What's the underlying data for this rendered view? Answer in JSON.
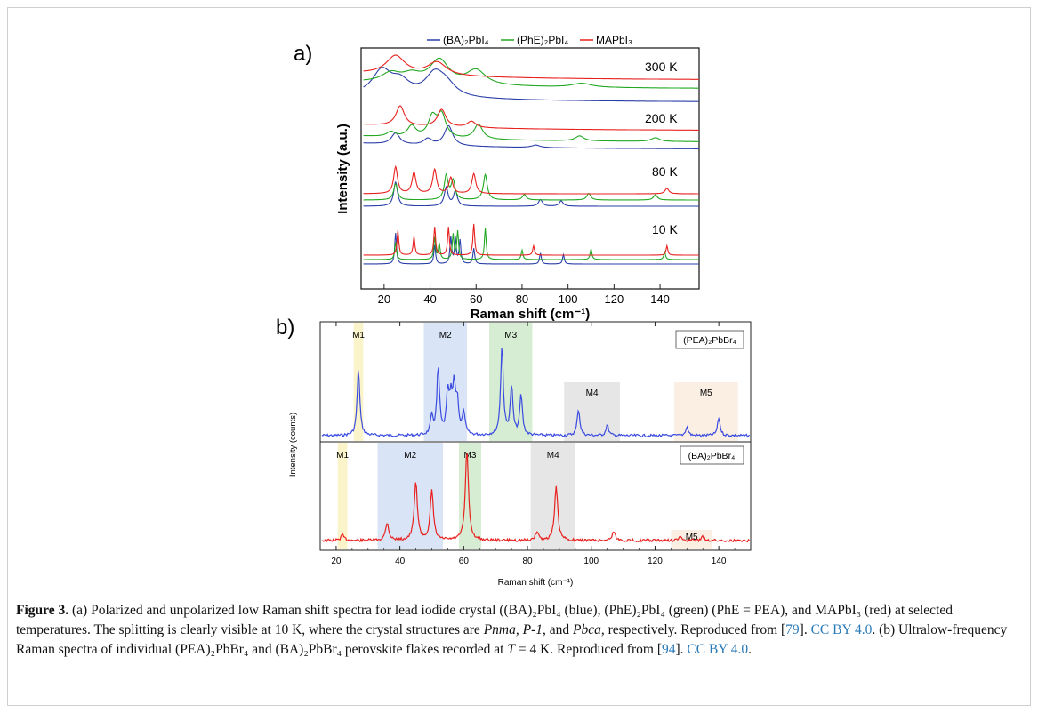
{
  "chart_data": [
    {
      "panel_label": "a)",
      "type": "line",
      "xlabel": "Raman shift (cm⁻¹)",
      "ylabel": "Intensity (a.u.)",
      "xlim": [
        10,
        157
      ],
      "x_ticks": [
        20,
        40,
        60,
        80,
        100,
        120,
        140
      ],
      "legend_placement": "top",
      "series": [
        {
          "name": "(BA)₂PbI₄",
          "color": "#2b3fa8"
        },
        {
          "name": "(PhE)₂PbI₄",
          "color": "#22a822"
        },
        {
          "name": "MAPbI₃",
          "color": "#e8211f"
        }
      ],
      "temperature_labels": [
        "300 K",
        "200 K",
        "80 K",
        "10 K"
      ],
      "peaks": {
        "300K": {
          "BA": [
            [
              19,
              0.9
            ],
            [
              27,
              0.5
            ],
            [
              42,
              0.8
            ],
            [
              47,
              0.4
            ]
          ],
          "PhE": [
            [
              23,
              0.35
            ],
            [
              32,
              0.3
            ],
            [
              44,
              0.9
            ],
            [
              60,
              0.55
            ],
            [
              106,
              0.15
            ]
          ],
          "MA": [
            [
              25,
              0.7
            ],
            [
              43,
              0.5
            ]
          ]
        },
        "200K": {
          "BA": [
            [
              25,
              0.45
            ],
            [
              39,
              0.25
            ],
            [
              48,
              0.8
            ],
            [
              86,
              0.1
            ]
          ],
          "PhE": [
            [
              23,
              0.2
            ],
            [
              32,
              0.45
            ],
            [
              41,
              0.8
            ],
            [
              45,
              0.9
            ],
            [
              61,
              0.6
            ],
            [
              105,
              0.2
            ],
            [
              138,
              0.15
            ]
          ],
          "MA": [
            [
              27,
              0.8
            ],
            [
              45,
              0.7
            ],
            [
              58,
              0.25
            ]
          ]
        },
        "80K": {
          "BA": [
            [
              25,
              0.9
            ],
            [
              47,
              0.7
            ],
            [
              51,
              0.55
            ],
            [
              88,
              0.25
            ],
            [
              97,
              0.2
            ]
          ],
          "PhE": [
            [
              25,
              0.6
            ],
            [
              47,
              0.9
            ],
            [
              50,
              0.7
            ],
            [
              64,
              0.95
            ],
            [
              81,
              0.2
            ],
            [
              109,
              0.25
            ],
            [
              138,
              0.2
            ]
          ],
          "MA": [
            [
              25,
              1.0
            ],
            [
              33,
              0.8
            ],
            [
              42,
              0.9
            ],
            [
              49,
              0.6
            ],
            [
              59,
              0.75
            ],
            [
              143,
              0.2
            ]
          ]
        },
        "10K": {
          "BA": [
            [
              25,
              1.0
            ],
            [
              42,
              0.6
            ],
            [
              49,
              0.85
            ],
            [
              51,
              0.8
            ],
            [
              53,
              0.75
            ],
            [
              59,
              0.5
            ],
            [
              88,
              0.35
            ],
            [
              98,
              0.3
            ]
          ],
          "PhE": [
            [
              25,
              0.55
            ],
            [
              42,
              0.7
            ],
            [
              44,
              0.5
            ],
            [
              50,
              0.8
            ],
            [
              52,
              0.9
            ],
            [
              64,
              1.0
            ],
            [
              80,
              0.3
            ],
            [
              110,
              0.35
            ],
            [
              142,
              0.25
            ]
          ],
          "MA": [
            [
              26,
              0.8
            ],
            [
              33,
              0.6
            ],
            [
              42,
              0.9
            ],
            [
              48,
              0.9
            ],
            [
              59,
              1.0
            ],
            [
              85,
              0.3
            ],
            [
              143,
              0.3
            ]
          ]
        }
      }
    },
    {
      "panel_label": "b)",
      "type": "line",
      "xlabel": "Raman shift (cm⁻¹)",
      "ylabel": "Intensity (counts)",
      "xlim": [
        15,
        150
      ],
      "x_ticks": [
        20,
        40,
        60,
        80,
        100,
        120,
        140
      ],
      "series": [
        {
          "name": "(PEA)₂PbBr₄",
          "color": "#3a4be0",
          "peaks": [
            [
              27,
              0.75
            ],
            [
              50,
              0.2
            ],
            [
              52,
              0.75
            ],
            [
              55,
              0.45
            ],
            [
              56,
              0.35
            ],
            [
              57,
              0.5
            ],
            [
              58,
              0.35
            ],
            [
              60,
              0.25
            ],
            [
              72,
              1.0
            ],
            [
              75,
              0.55
            ],
            [
              78,
              0.45
            ],
            [
              96,
              0.3
            ],
            [
              105,
              0.12
            ],
            [
              130,
              0.1
            ],
            [
              140,
              0.2
            ]
          ]
        },
        {
          "name": "(BA)₂PbBr₄",
          "color": "#e8211f",
          "peaks": [
            [
              22,
              0.06
            ],
            [
              36,
              0.2
            ],
            [
              45,
              0.65
            ],
            [
              50,
              0.55
            ],
            [
              61,
              1.0
            ],
            [
              83,
              0.1
            ],
            [
              89,
              0.6
            ],
            [
              107,
              0.1
            ],
            [
              128,
              0.04
            ],
            [
              135,
              0.04
            ]
          ]
        }
      ],
      "modes_top": [
        {
          "label": "M1",
          "range": [
            25.5,
            28.5
          ],
          "color": "#fbf3c9"
        },
        {
          "label": "M2",
          "range": [
            47.5,
            61
          ],
          "color": "#d9e4f6"
        },
        {
          "label": "M3",
          "range": [
            68,
            81.5
          ],
          "color": "#d6ecd3"
        },
        {
          "label": "M4",
          "range": [
            91.5,
            109
          ],
          "color": "#e6e6e6"
        },
        {
          "label": "M5",
          "range": [
            126,
            146
          ],
          "color": "#fbeee3"
        }
      ],
      "modes_bottom": [
        {
          "label": "M1",
          "range": [
            20.5,
            23.5
          ],
          "color": "#fbf3c9"
        },
        {
          "label": "M2",
          "range": [
            33,
            53.5
          ],
          "color": "#d9e4f6"
        },
        {
          "label": "M3",
          "range": [
            58.5,
            65.5
          ],
          "color": "#d6ecd3"
        },
        {
          "label": "M4",
          "range": [
            81,
            95
          ],
          "color": "#e6e6e6"
        },
        {
          "label": "M5",
          "range": [
            125,
            138
          ],
          "color": "#fbeee3"
        }
      ]
    }
  ],
  "caption": {
    "label": "Figure 3.",
    "parts": [
      " (a) Polarized and unpolarized low Raman shift spectra for lead iodide crystal ((BA)₂PbI₄ (blue), (PhE)₂PbI₄ (green) (PhE = PEA), and MAPbI₃ (red) at selected temperatures. The splitting is clearly visible at 10 K, where the crystal structures are ",
      "Pnma, P-1",
      ", and ",
      "Pbca",
      ", respectively. Reproduced from [",
      "79",
      "]. ",
      "CC BY 4.0",
      ". (b) Ultralow-frequency Raman spectra of individual (PEA)₂PbBr₄ and (BA)₂PbBr₄ perovskite flakes recorded at ",
      "T",
      " = 4 K. Reproduced from [",
      "94",
      "]. ",
      "CC BY 4.0",
      "."
    ]
  }
}
